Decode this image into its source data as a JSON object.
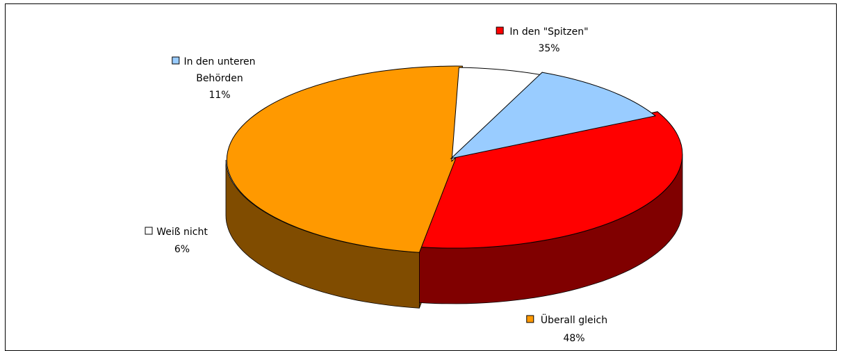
{
  "chart_data": {
    "type": "pie",
    "style": "3d-exploded",
    "slices": [
      {
        "label": "In den \"Spitzen\"",
        "value": 35,
        "value_label": "35%",
        "color": "#ff0000",
        "side_color": "#800000"
      },
      {
        "label": "Überall gleich",
        "value": 48,
        "value_label": "48%",
        "color": "#ff9900",
        "side_color": "#804c00"
      },
      {
        "label": "Weiß nicht",
        "value": 6,
        "value_label": "6%",
        "color": "#ffffff",
        "side_color": "#808080"
      },
      {
        "label": "In den unteren Behörden",
        "label_lines": [
          "In den unteren",
          "Behörden"
        ],
        "value": 11,
        "value_label": "11%",
        "color": "#99ccff",
        "side_color": "#4d6680"
      }
    ]
  }
}
